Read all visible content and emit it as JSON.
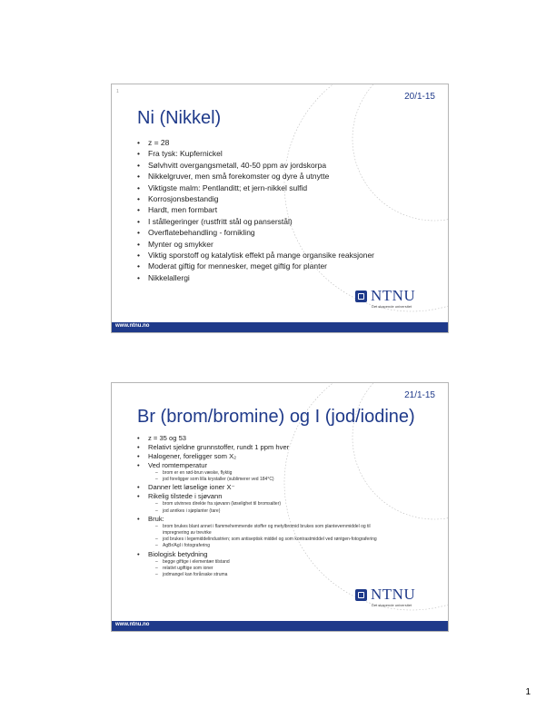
{
  "slides": [
    {
      "date": "20/1-15",
      "title": "Ni (Nikkel)",
      "mark": "1",
      "bullets": [
        {
          "text": "z = 28"
        },
        {
          "text": "Fra tysk: Kupfernickel"
        },
        {
          "text": "Sølvhvitt overgangsmetall, 40-50 ppm av jordskorpa"
        },
        {
          "text": "Nikkelgruver, men små forekomster og dyre å utnytte"
        },
        {
          "text": "Viktigste malm: Pentlanditt; et jern-nikkel sulfid"
        },
        {
          "text": "Korrosjonsbestandig"
        },
        {
          "text": "Hardt, men formbart"
        },
        {
          "text": "I stållegeringer (rustfritt stål og panserstål)"
        },
        {
          "text": "Overflatebehandling - fornikling"
        },
        {
          "text": "Mynter og smykker"
        },
        {
          "text": "Viktig sporstoff og katalytisk effekt på mange organsike reaksjoner"
        },
        {
          "text": "Moderat giftig for mennesker, meget giftig for planter"
        },
        {
          "text": "Nikkelallergi"
        }
      ],
      "footer_url": "www.ntnu.no",
      "logo": {
        "word": "NTNU",
        "tagline": "Det skapende universitet"
      }
    },
    {
      "date": "21/1-15",
      "title": "Br (brom/bromine) og I (jod/iodine)",
      "bullets": [
        {
          "text": "z = 35 og 53",
          "sub": []
        },
        {
          "text": "Relativt sjeldne grunnstoffer, rundt 1 ppm hver",
          "sub": []
        },
        {
          "text": "Halogener, foreligger som X₂",
          "sub": []
        },
        {
          "text": "Ved romtemperatur",
          "sub": [
            "brom er en rød-brun væske, flyktig",
            "jod foreligger som lilla krystaller (sublimerer ved 184°C)"
          ]
        },
        {
          "text": "Danner lett løselige ioner X⁻",
          "sub": []
        },
        {
          "text": "Rikelig tilstede i sjøvann",
          "sub": [
            "brom utvinnes direkte fra sjøvann (løselighet til bromsalter)",
            "jod anrikes i sjøplanter (tare)"
          ]
        },
        {
          "text": "Bruk:",
          "sub": [
            "brom brukes blant annet i flammehemmende stoffer og metylbromid brukes som plantevernmiddel og til impregnering av trevirke",
            "jod brukes i legemiddelindustrien; som antiseptisk middel og som kontrastmiddel ved røntgen-fotografering",
            "AgBr/AgI i fotografering"
          ]
        },
        {
          "text": "Biologisk betydning",
          "sub": [
            "begge giftige i elementær tilstand",
            "relativt ugiftige som ioner",
            "jodmangel kan forårsake struma"
          ]
        }
      ],
      "footer_url": "www.ntnu.no",
      "logo": {
        "word": "NTNU",
        "tagline": "Det skapende universitet"
      }
    }
  ],
  "page_number": "1",
  "colors": {
    "accent": "#1f3a8a",
    "border": "#b5b5b5"
  }
}
